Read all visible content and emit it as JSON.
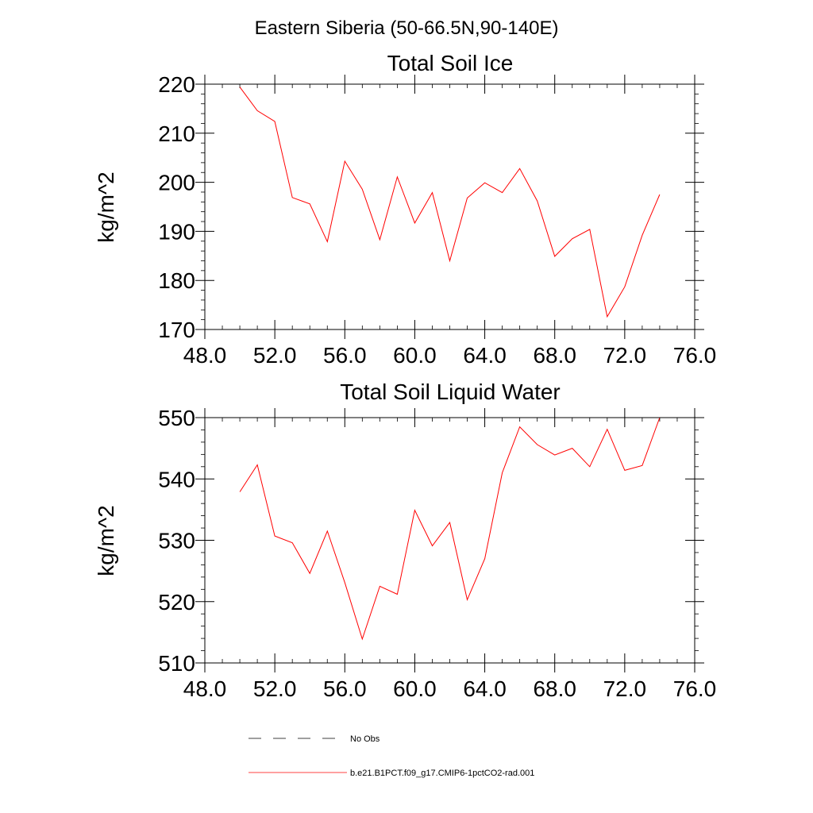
{
  "figure": {
    "title": "Eastern Siberia (50-66.5N,90-140E)"
  },
  "legend": {
    "items": [
      {
        "label": "No Obs",
        "color": "#000000",
        "style": "dashed"
      },
      {
        "label": "b.e21.B1PCT.f09_g17.CMIP6-1pctCO2-rad.001",
        "color": "#ff0000",
        "style": "solid"
      }
    ]
  },
  "chart_data": [
    {
      "type": "line",
      "title": "Total Soil Ice",
      "xlabel": "",
      "ylabel": "kg/m^2",
      "xlim": [
        48,
        76
      ],
      "ylim": [
        170,
        220
      ],
      "x_ticks": [
        48,
        52,
        56,
        60,
        64,
        68,
        72,
        76
      ],
      "x_tick_labels": [
        "48.0",
        "52.0",
        "56.0",
        "60.0",
        "64.0",
        "68.0",
        "72.0",
        "76.0"
      ],
      "y_ticks": [
        170,
        180,
        190,
        200,
        210,
        220
      ],
      "y_tick_labels": [
        "170",
        "180",
        "190",
        "200",
        "210",
        "220"
      ],
      "grid": false,
      "series": [
        {
          "name": "b.e21.B1PCT.f09_g17.CMIP6-1pctCO2-rad.001",
          "color": "#ff0000",
          "x": [
            50,
            51,
            52,
            53,
            54,
            55,
            56,
            57,
            58,
            59,
            60,
            61,
            62,
            63,
            64,
            65,
            66,
            67,
            68,
            69,
            70,
            71,
            72,
            73,
            74
          ],
          "values": [
            219.4,
            214.6,
            212.4,
            196.9,
            195.6,
            187.9,
            204.3,
            198.6,
            188.3,
            201.1,
            191.7,
            197.9,
            184.0,
            196.8,
            199.9,
            197.9,
            202.8,
            196.2,
            184.9,
            188.5,
            190.4,
            172.6,
            178.7,
            189.2,
            197.5
          ]
        }
      ]
    },
    {
      "type": "line",
      "title": "Total Soil Liquid Water",
      "xlabel": "",
      "ylabel": "kg/m^2",
      "xlim": [
        48,
        76
      ],
      "ylim": [
        510,
        550
      ],
      "x_ticks": [
        48,
        52,
        56,
        60,
        64,
        68,
        72,
        76
      ],
      "x_tick_labels": [
        "48.0",
        "52.0",
        "56.0",
        "60.0",
        "64.0",
        "68.0",
        "72.0",
        "76.0"
      ],
      "y_ticks": [
        510,
        520,
        530,
        540,
        550
      ],
      "y_tick_labels": [
        "510",
        "520",
        "530",
        "540",
        "550"
      ],
      "grid": false,
      "series": [
        {
          "name": "b.e21.B1PCT.f09_g17.CMIP6-1pctCO2-rad.001",
          "color": "#ff0000",
          "x": [
            50,
            51,
            52,
            53,
            54,
            55,
            56,
            57,
            58,
            59,
            60,
            61,
            62,
            63,
            64,
            65,
            66,
            67,
            68,
            69,
            70,
            71,
            72,
            73,
            74
          ],
          "values": [
            537.9,
            542.3,
            530.7,
            529.6,
            524.6,
            531.5,
            523.1,
            513.9,
            522.5,
            521.2,
            534.9,
            529.1,
            532.9,
            520.3,
            527.0,
            541.0,
            548.5,
            545.6,
            543.9,
            545.0,
            542.0,
            548.1,
            541.4,
            542.2,
            550.0
          ]
        }
      ]
    }
  ]
}
